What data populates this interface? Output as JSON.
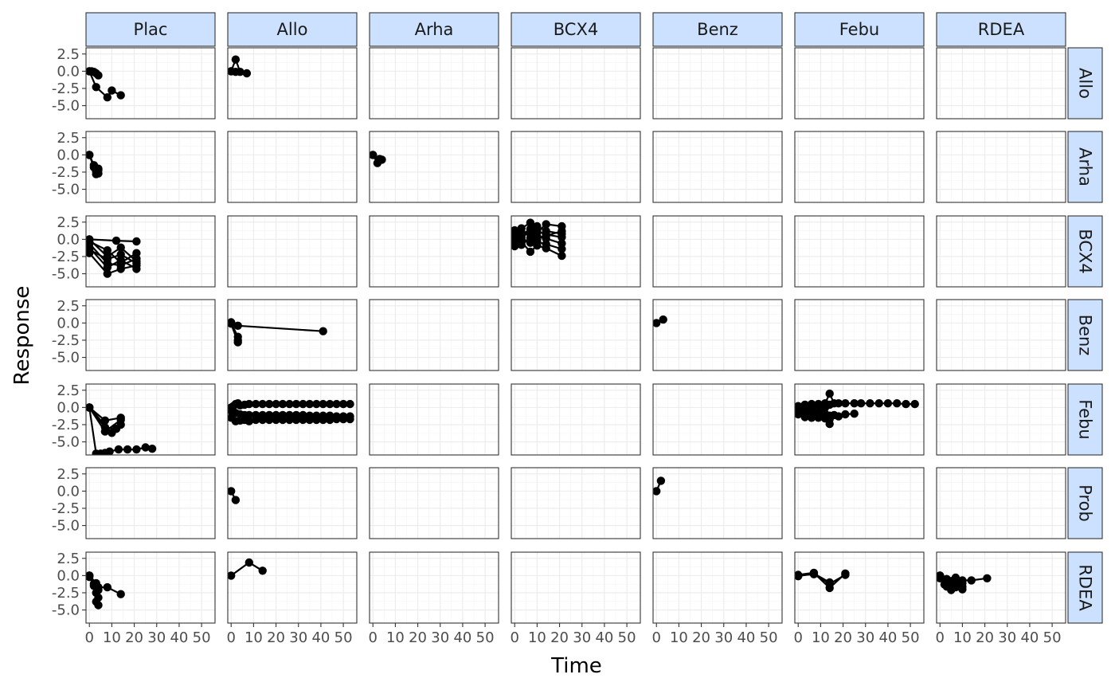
{
  "chart_data": {
    "type": "line",
    "facet_cols": [
      "Plac",
      "Allo",
      "Arha",
      "BCX4",
      "Benz",
      "Febu",
      "RDEA"
    ],
    "facet_rows": [
      "Allo",
      "Arha",
      "BCX4",
      "Benz",
      "Febu",
      "Prob",
      "RDEA"
    ],
    "xlabel": "Time",
    "ylabel": "Response",
    "xlim": [
      -1.5,
      56
    ],
    "ylim": [
      -6.9,
      3.4
    ],
    "x_ticks": [
      0,
      10,
      20,
      30,
      40,
      50
    ],
    "x_tick_labels": [
      "0",
      "10",
      "20",
      "30",
      "40",
      "50"
    ],
    "y_ticks": [
      2.5,
      0,
      -2.5,
      -5
    ],
    "y_tick_labels": [
      "2.5",
      "0.0",
      "-2.5",
      "-5.0"
    ],
    "grid": true,
    "point_color": "#000000",
    "strip_fill": "#cce1ff",
    "panels": [
      {
        "row": "Allo",
        "col": "Plac",
        "series": [
          {
            "x": [
              0,
              1,
              2,
              3,
              4
            ],
            "y": [
              0,
              0,
              -0.1,
              -0.3,
              -0.6
            ]
          },
          {
            "x": [
              0,
              3,
              8,
              10,
              14
            ],
            "y": [
              0,
              -2.3,
              -3.8,
              -2.8,
              -3.5
            ]
          }
        ]
      },
      {
        "row": "Allo",
        "col": "Allo",
        "series": [
          {
            "x": [
              0,
              2,
              4,
              7
            ],
            "y": [
              0,
              1.7,
              -0.1,
              -0.3
            ]
          },
          {
            "x": [
              0,
              2
            ],
            "y": [
              0,
              -0.1
            ]
          }
        ]
      },
      {
        "row": "Arha",
        "col": "Plac",
        "series": [
          {
            "x": [
              0,
              2,
              4
            ],
            "y": [
              0,
              -1.8,
              -2.7
            ]
          },
          {
            "x": [
              0,
              3,
              4
            ],
            "y": [
              0,
              -2.4,
              -2.0
            ]
          },
          {
            "x": [
              0,
              2,
              3,
              4
            ],
            "y": [
              0,
              -1.5,
              -2.8,
              -2.2
            ]
          }
        ]
      },
      {
        "row": "Arha",
        "col": "Arha",
        "series": [
          {
            "x": [
              0,
              2,
              4
            ],
            "y": [
              0,
              -1.2,
              -0.7
            ]
          },
          {
            "x": [
              0,
              3
            ],
            "y": [
              0,
              -0.6
            ]
          }
        ]
      },
      {
        "row": "BCX4",
        "col": "Plac",
        "series": [
          {
            "x": [
              0,
              8,
              14,
              21
            ],
            "y": [
              0,
              -2.5,
              -1.2,
              -3.2
            ]
          },
          {
            "x": [
              0,
              8,
              14,
              21
            ],
            "y": [
              -0.6,
              -3.5,
              -3.8,
              -2.8
            ]
          },
          {
            "x": [
              0,
              8,
              14,
              21
            ],
            "y": [
              -1.2,
              -4.1,
              -3.0,
              -4.3
            ]
          },
          {
            "x": [
              0,
              8,
              14,
              21
            ],
            "y": [
              -2.0,
              -5.0,
              -4.3,
              -3.8
            ]
          },
          {
            "x": [
              0,
              8,
              14,
              21
            ],
            "y": [
              -0.3,
              -1.6,
              -3.4,
              -2.0
            ]
          },
          {
            "x": [
              0,
              12,
              21
            ],
            "y": [
              0,
              -0.2,
              -0.3
            ]
          },
          {
            "x": [
              0,
              8,
              14,
              21
            ],
            "y": [
              -1.5,
              -2.9,
              -2.2,
              -3.5
            ]
          }
        ]
      },
      {
        "row": "BCX4",
        "col": "BCX4",
        "series": [
          {
            "x": [
              0,
              3,
              7,
              10,
              14,
              21
            ],
            "y": [
              0,
              1.6,
              2.4,
              1.0,
              2.2,
              1.9
            ]
          },
          {
            "x": [
              0,
              3,
              7,
              10,
              14,
              21
            ],
            "y": [
              -0.5,
              0.6,
              1.5,
              1.9,
              1.2,
              0.8
            ]
          },
          {
            "x": [
              0,
              3,
              7,
              10,
              14,
              21
            ],
            "y": [
              0.8,
              0.2,
              -0.5,
              0.4,
              0.1,
              -0.6
            ]
          },
          {
            "x": [
              0,
              3,
              7,
              10,
              14,
              21
            ],
            "y": [
              -1.0,
              -0.4,
              -1.8,
              -0.9,
              -1.3,
              -2.4
            ]
          },
          {
            "x": [
              0,
              3,
              7,
              10,
              14,
              21
            ],
            "y": [
              1.3,
              1.0,
              0.8,
              1.4,
              0.5,
              1.2
            ]
          },
          {
            "x": [
              0,
              3,
              7,
              10,
              14,
              21
            ],
            "y": [
              0.3,
              -0.8,
              0.2,
              -0.4,
              -0.7,
              -1.4
            ]
          },
          {
            "x": [
              0,
              3,
              7,
              10,
              14,
              21
            ],
            "y": [
              -0.2,
              0.4,
              1.0,
              0.0,
              0.7,
              0.3
            ]
          }
        ]
      },
      {
        "row": "Benz",
        "col": "Allo",
        "series": [
          {
            "x": [
              0,
              3,
              41
            ],
            "y": [
              0,
              -0.4,
              -1.2
            ]
          },
          {
            "x": [
              0,
              3
            ],
            "y": [
              0,
              -2.0
            ]
          },
          {
            "x": [
              0,
              3
            ],
            "y": [
              -0.1,
              -2.8
            ]
          },
          {
            "x": [
              0,
              3
            ],
            "y": [
              0.1,
              -2.5
            ]
          }
        ]
      },
      {
        "row": "Benz",
        "col": "Benz",
        "series": [
          {
            "x": [
              0,
              3
            ],
            "y": [
              0,
              0.5
            ]
          }
        ]
      },
      {
        "row": "Febu",
        "col": "Plac",
        "series": [
          {
            "x": [
              0,
              3,
              5,
              7,
              9,
              13,
              17,
              21,
              25,
              28
            ],
            "y": [
              0,
              -6.7,
              -6.7,
              -6.6,
              -6.4,
              -6.1,
              -6.1,
              -6.1,
              -5.8,
              -6.0
            ]
          },
          {
            "x": [
              0,
              7,
              14
            ],
            "y": [
              0,
              -1.9,
              -1.5
            ]
          },
          {
            "x": [
              0,
              7,
              14
            ],
            "y": [
              0,
              -3.5,
              -1.8
            ]
          },
          {
            "x": [
              0,
              10,
              14
            ],
            "y": [
              0,
              -3.7,
              -2.5
            ]
          },
          {
            "x": [
              0,
              7,
              12
            ],
            "y": [
              0,
              -2.9,
              -3.1
            ]
          }
        ]
      },
      {
        "row": "Febu",
        "col": "Allo",
        "series": [
          {
            "x": [
              0,
              1,
              2,
              3,
              4,
              6,
              8,
              11,
              14,
              17,
              20,
              23,
              26,
              29,
              32,
              35,
              38,
              41,
              44,
              47,
              50,
              53
            ],
            "y": [
              0,
              0.2,
              0.5,
              0.6,
              0.3,
              0.4,
              0.5,
              0.5,
              0.5,
              0.5,
              0.5,
              0.5,
              0.5,
              0.5,
              0.5,
              0.5,
              0.5,
              0.5,
              0.5,
              0.5,
              0.5,
              0.5
            ]
          },
          {
            "x": [
              0,
              2,
              4,
              6,
              8,
              11,
              14,
              17,
              20,
              23,
              26,
              29,
              32,
              35,
              38,
              41,
              44,
              47,
              50,
              53
            ],
            "y": [
              -0.5,
              -0.8,
              -1.0,
              -1.1,
              -1.1,
              -1.1,
              -1.1,
              -1.1,
              -1.1,
              -1.1,
              -1.1,
              -1.1,
              -1.1,
              -1.2,
              -1.2,
              -1.2,
              -1.2,
              -1.3,
              -1.3,
              -1.3
            ]
          },
          {
            "x": [
              0,
              2,
              4,
              6,
              8,
              11,
              14,
              17,
              20,
              23,
              26,
              29,
              32,
              35,
              38,
              41,
              44,
              47,
              50,
              53
            ],
            "y": [
              -1.5,
              -2.0,
              -1.9,
              -1.8,
              -2.0,
              -1.8,
              -1.8,
              -1.8,
              -1.8,
              -1.8,
              -1.8,
              -1.8,
              -1.8,
              -1.8,
              -1.8,
              -1.8,
              -1.8,
              -1.7,
              -1.7,
              -1.7
            ]
          }
        ]
      },
      {
        "row": "Febu",
        "col": "Febu",
        "series": [
          {
            "x": [
              0,
              3,
              6,
              9,
              12,
              14,
              16,
              18,
              21,
              25,
              28,
              32,
              36,
              40,
              44,
              48,
              52
            ],
            "y": [
              0,
              0.4,
              0.5,
              0.5,
              0.6,
              2.0,
              0.6,
              0.6,
              0.6,
              0.6,
              0.6,
              0.6,
              0.6,
              0.6,
              0.6,
              0.5,
              0.5
            ]
          },
          {
            "x": [
              0,
              3,
              6,
              9,
              12,
              14
            ],
            "y": [
              -0.3,
              -0.5,
              -0.8,
              -0.6,
              -0.9,
              -2.4
            ]
          },
          {
            "x": [
              0,
              3,
              6,
              9,
              12,
              14,
              16,
              18,
              21,
              25
            ],
            "y": [
              -0.6,
              -1.4,
              -1.2,
              -1.5,
              -1.3,
              -1.7,
              -1.1,
              -1.3,
              -1.0,
              -0.9
            ]
          },
          {
            "x": [
              0,
              3,
              6,
              9,
              12,
              14
            ],
            "y": [
              0.2,
              0.1,
              -0.2,
              0.3,
              0.0,
              0.4
            ]
          },
          {
            "x": [
              0,
              3,
              6,
              9,
              12,
              14
            ],
            "y": [
              -1.0,
              -0.9,
              -1.5,
              -1.1,
              -1.6,
              -1.2
            ]
          }
        ]
      },
      {
        "row": "Prob",
        "col": "Allo",
        "series": [
          {
            "x": [
              0,
              2
            ],
            "y": [
              0,
              -1.3
            ]
          }
        ]
      },
      {
        "row": "Prob",
        "col": "Benz",
        "series": [
          {
            "x": [
              0,
              2
            ],
            "y": [
              0,
              1.5
            ]
          }
        ]
      },
      {
        "row": "RDEA",
        "col": "Plac",
        "series": [
          {
            "x": [
              0,
              2,
              3,
              4
            ],
            "y": [
              0,
              -1.5,
              -3.8,
              -4.3
            ]
          },
          {
            "x": [
              0,
              3,
              4
            ],
            "y": [
              0,
              -2.5,
              -3.2
            ]
          },
          {
            "x": [
              0,
              3,
              4,
              8,
              14
            ],
            "y": [
              0,
              -1.1,
              -1.7,
              -1.7,
              -2.7
            ]
          },
          {
            "x": [
              0,
              2,
              4
            ],
            "y": [
              -0.2,
              -1.2,
              -2.1
            ]
          }
        ]
      },
      {
        "row": "RDEA",
        "col": "Allo",
        "series": [
          {
            "x": [
              0,
              8,
              14
            ],
            "y": [
              0,
              1.9,
              0.7
            ]
          }
        ]
      },
      {
        "row": "RDEA",
        "col": "Febu",
        "series": [
          {
            "x": [
              0,
              7,
              14,
              21
            ],
            "y": [
              0,
              0.2,
              -1.2,
              0.1
            ]
          },
          {
            "x": [
              0,
              7,
              14,
              21
            ],
            "y": [
              0.1,
              0.4,
              -1.8,
              0.3
            ]
          },
          {
            "x": [
              0,
              7,
              14
            ],
            "y": [
              -0.1,
              0.3,
              -1.0
            ]
          }
        ]
      },
      {
        "row": "RDEA",
        "col": "RDEA",
        "series": [
          {
            "x": [
              0,
              3,
              5,
              7,
              10,
              14,
              21
            ],
            "y": [
              0,
              -0.5,
              -0.8,
              -0.3,
              -0.7,
              -0.7,
              -0.4
            ]
          },
          {
            "x": [
              0,
              3,
              5,
              7,
              10
            ],
            "y": [
              0,
              -1.1,
              -1.9,
              -1.2,
              -1.6
            ]
          },
          {
            "x": [
              0,
              3,
              5,
              7,
              10
            ],
            "y": [
              -0.3,
              -1.6,
              -2.1,
              -1.7,
              -2.0
            ]
          },
          {
            "x": [
              0,
              3,
              5,
              7,
              10
            ],
            "y": [
              0,
              -0.8,
              -1.3,
              -0.6,
              -1.1
            ]
          },
          {
            "x": [
              0,
              2,
              4,
              8
            ],
            "y": [
              -0.4,
              -1.3,
              -1.0,
              -1.5
            ]
          }
        ]
      }
    ]
  }
}
